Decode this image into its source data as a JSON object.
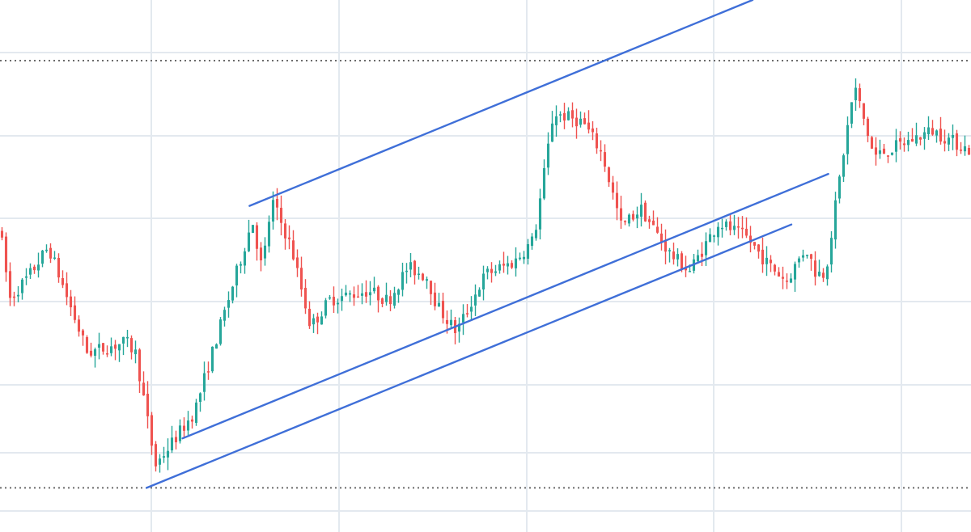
{
  "chart_data": {
    "type": "candlestick",
    "title": "",
    "xlabel": "",
    "ylabel": "",
    "grid": true,
    "legend": "none",
    "ylim": [
      0,
      100
    ],
    "colors": {
      "up": "#26a69a",
      "down": "#ef5350",
      "trendline": "#3f6fd8",
      "grid": "#e3e9ef",
      "level": "#6b6b6b",
      "background": "#ffffff"
    },
    "levels": [
      88.6,
      8.3
    ],
    "anchors": [
      [
        0.0,
        57.0
      ],
      [
        0.01,
        43.8
      ],
      [
        0.03,
        48.2
      ],
      [
        0.05,
        53.6
      ],
      [
        0.09,
        33.7
      ],
      [
        0.13,
        35.7
      ],
      [
        0.14,
        33.5
      ],
      [
        0.16,
        12.5
      ],
      [
        0.2,
        22.5
      ],
      [
        0.26,
        58.6
      ],
      [
        0.27,
        49.2
      ],
      [
        0.28,
        62.4
      ],
      [
        0.3,
        53.5
      ],
      [
        0.32,
        38.6
      ],
      [
        0.34,
        43.7
      ],
      [
        0.38,
        45.4
      ],
      [
        0.4,
        43.4
      ],
      [
        0.42,
        49.8
      ],
      [
        0.44,
        47.9
      ],
      [
        0.45,
        42.5
      ],
      [
        0.47,
        37.6
      ],
      [
        0.5,
        48.5
      ],
      [
        0.53,
        50.8
      ],
      [
        0.55,
        55.1
      ],
      [
        0.57,
        78.8
      ],
      [
        0.6,
        77.1
      ],
      [
        0.62,
        71.2
      ],
      [
        0.64,
        57.4
      ],
      [
        0.66,
        60.8
      ],
      [
        0.69,
        52.3
      ],
      [
        0.71,
        49.0
      ],
      [
        0.74,
        58.2
      ],
      [
        0.77,
        55.2
      ],
      [
        0.79,
        50.5
      ],
      [
        0.81,
        47.2
      ],
      [
        0.83,
        53.5
      ],
      [
        0.84,
        48.8
      ],
      [
        0.85,
        48.6
      ],
      [
        0.87,
        72.9
      ],
      [
        0.88,
        83.9
      ],
      [
        0.9,
        70.6
      ],
      [
        0.93,
        73.0
      ],
      [
        0.96,
        75.5
      ],
      [
        1.0,
        71.6
      ]
    ],
    "trendlines": [
      {
        "p1": [
          0.257,
          61.3
        ],
        "p2": [
          0.775,
          100.0
        ]
      },
      {
        "p1": [
          0.188,
          17.6
        ],
        "p2": [
          0.853,
          67.3
        ]
      },
      {
        "p1": [
          0.151,
          8.3
        ],
        "p2": [
          0.815,
          57.8
        ]
      }
    ]
  }
}
